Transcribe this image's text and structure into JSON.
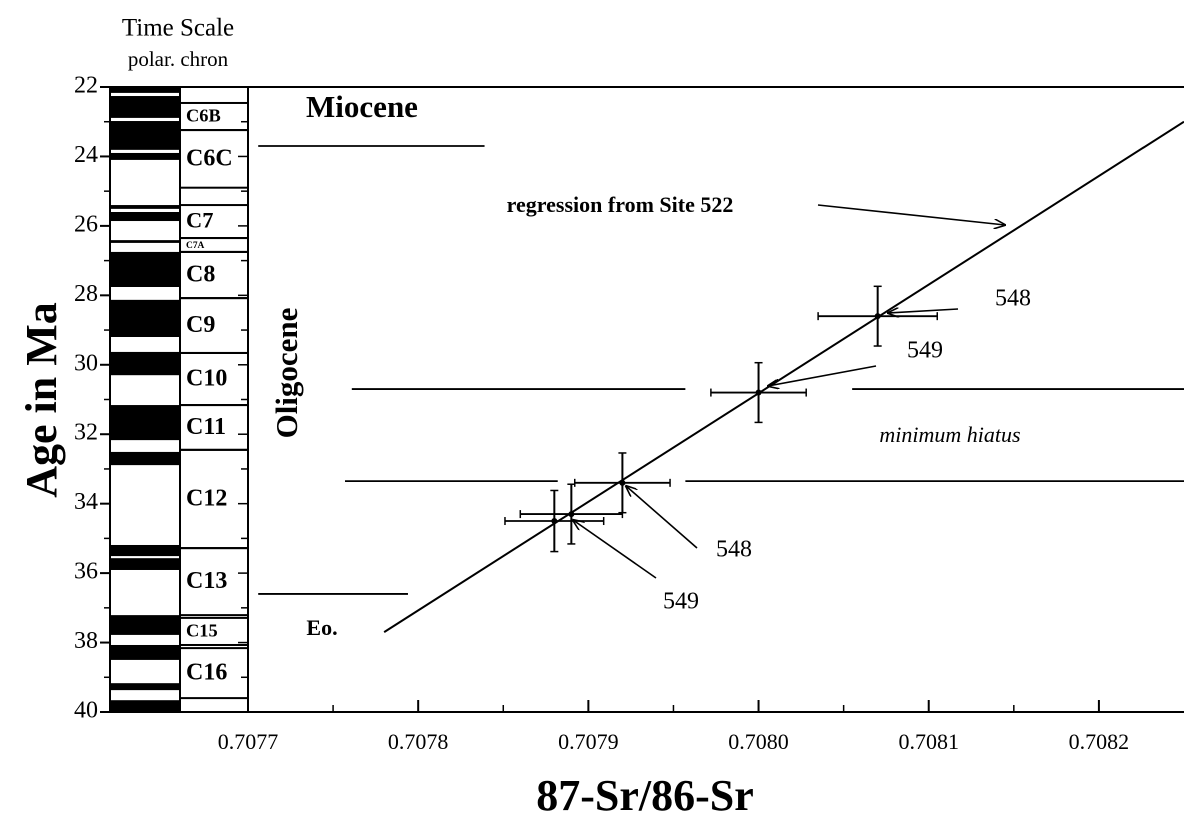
{
  "chart_data": {
    "type": "scatter",
    "title": "Time Scale",
    "subtitle": "polar. chron",
    "x_label": "87-Sr/86-Sr",
    "y_label": "Age in Ma",
    "xlim": [
      0.7077,
      0.70825
    ],
    "ylim": [
      22,
      40
    ],
    "invert_y": true,
    "xticks": [
      0.7077,
      0.7078,
      0.7079,
      {
        "value": 0.708,
        "label": "0.7080"
      },
      0.7081,
      0.7082
    ],
    "xminor": [
      0.70775,
      0.70785,
      0.70795,
      0.70805,
      0.70815
    ],
    "yticks": [
      22,
      24,
      26,
      28,
      30,
      32,
      34,
      36,
      38,
      40
    ],
    "yminor": [
      23,
      25,
      27,
      29,
      31,
      33,
      35,
      37,
      39
    ],
    "color": "#000000",
    "series": [
      {
        "color": "#000000",
        "x": [
          0.70807,
          0.708,
          0.70792,
          0.70789,
          0.70788
        ],
        "values": [
          28.6,
          30.8,
          33.4,
          34.3,
          34.5
        ],
        "xerr": [
          3.5e-05,
          2.8e-05,
          2.8e-05,
          3e-05,
          2.9e-05
        ],
        "yerr": [
          0.86,
          0.86,
          0.86,
          0.86,
          0.88
        ]
      }
    ],
    "regression": {
      "x": [
        0.70778,
        0.70825
      ],
      "values": [
        37.7,
        23.0
      ]
    },
    "reference_lines": [
      {
        "y": 23.7,
        "x": [
          0.707706,
          0.707839
        ]
      },
      {
        "y": 36.6,
        "x": [
          0.707706,
          0.707794
        ]
      },
      {
        "y": 30.7,
        "x": [
          0.707761,
          0.707957
        ]
      },
      {
        "y": 30.7,
        "x": [
          0.708055,
          0.70825
        ]
      },
      {
        "y": 33.35,
        "x": [
          0.707757,
          0.707882
        ]
      },
      {
        "y": 33.35,
        "x": [
          0.707957,
          0.70825
        ]
      }
    ],
    "polarity_normal": [
      [
        22.0,
        22.17
      ],
      [
        22.26,
        22.89
      ],
      [
        22.98,
        23.81
      ],
      [
        23.9,
        24.1
      ],
      [
        25.4,
        25.51
      ],
      [
        25.6,
        25.86
      ],
      [
        26.41,
        26.49
      ],
      [
        26.75,
        27.76
      ],
      [
        28.13,
        29.2
      ],
      [
        29.63,
        30.3
      ],
      [
        31.16,
        32.17
      ],
      [
        32.51,
        32.89
      ],
      [
        35.19,
        35.51
      ],
      [
        35.57,
        35.91
      ],
      [
        37.21,
        37.78
      ],
      [
        38.07,
        38.5
      ],
      [
        39.17,
        39.37
      ],
      [
        39.66,
        40.0
      ]
    ],
    "chrons": [
      {
        "label": "C6B",
        "top": 22.46,
        "bottom": 23.24
      },
      {
        "label": "C6C",
        "top": 23.24,
        "bottom": 24.9
      },
      {
        "label": "C7",
        "top": 25.4,
        "bottom": 26.35
      },
      {
        "label": "C7A",
        "top": 26.35,
        "bottom": 26.75
      },
      {
        "label": "C8",
        "top": 26.75,
        "bottom": 28.08
      },
      {
        "label": "C9",
        "top": 28.08,
        "bottom": 29.66
      },
      {
        "label": "C10",
        "top": 29.66,
        "bottom": 31.16
      },
      {
        "label": "C11",
        "top": 31.16,
        "bottom": 32.45
      },
      {
        "label": "C12",
        "top": 32.45,
        "bottom": 35.28
      },
      {
        "label": "C13",
        "top": 35.28,
        "bottom": 37.21
      },
      {
        "label": "C15",
        "top": 37.29,
        "bottom": 38.07
      },
      {
        "label": "C16",
        "top": 38.16,
        "bottom": 39.6
      }
    ],
    "annotations": [
      "Miocene",
      "Oligocene",
      "Eo.",
      "regression from Site 522",
      "548",
      "549",
      "minimum hiatus",
      "548",
      "549"
    ]
  }
}
